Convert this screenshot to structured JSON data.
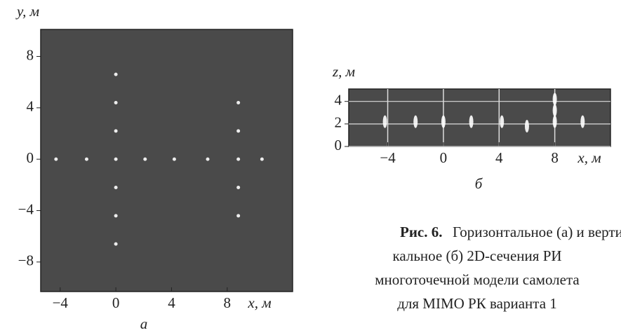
{
  "chart_data": [
    {
      "type": "scatter",
      "caption": "а",
      "xlabel": "x, м",
      "ylabel": "y, м",
      "background": "#4a4a4a",
      "color": "#ffffff",
      "xlim": [
        -5.4,
        12.7
      ],
      "ylim": [
        -10.3,
        10.1
      ],
      "xticks": [
        {
          "value": -4,
          "label": "−4"
        },
        0,
        4,
        8
      ],
      "yticks": [
        8,
        4,
        0,
        {
          "value": -4,
          "label": "−4"
        },
        {
          "value": -8,
          "label": "−8"
        }
      ],
      "grid": false,
      "x": [
        -4.3,
        -2.1,
        2.1,
        4.2,
        6.6,
        8.8,
        10.5,
        0,
        0,
        0,
        0,
        0,
        0,
        0,
        8.8,
        8.8,
        8.8,
        8.8
      ],
      "y": [
        0,
        0,
        0,
        0,
        0,
        0,
        0,
        6.6,
        4.4,
        2.2,
        0,
        -2.2,
        -4.4,
        -6.6,
        4.4,
        2.2,
        -2.2,
        -4.4
      ]
    },
    {
      "type": "scatter",
      "caption": "б",
      "xlabel": "x, м",
      "ylabel": "z, м",
      "background": "#4a4a4a",
      "color": "#ffffff",
      "xlim": [
        -6.8,
        12.0
      ],
      "ylim": [
        0,
        5.1
      ],
      "xticks": [
        {
          "value": -4,
          "label": "−4"
        },
        0,
        4,
        8
      ],
      "yticks": [
        4,
        2,
        0
      ],
      "grid": true,
      "x": [
        -4.2,
        -2.0,
        0,
        2.0,
        4.2,
        6.0,
        8.0,
        10.0,
        8.0,
        8.0
      ],
      "y": [
        2.2,
        2.2,
        2.2,
        2.2,
        2.2,
        1.8,
        2.2,
        2.2,
        4.2,
        3.2
      ]
    }
  ],
  "figure_caption": {
    "label": "Рис. 6.",
    "lines": [
      "Горизонтальное (а) и верти-",
      "кальное (б) 2D-сечения РИ",
      "многоточечной модели самолета",
      "для MIMO РК варианта 1"
    ]
  }
}
